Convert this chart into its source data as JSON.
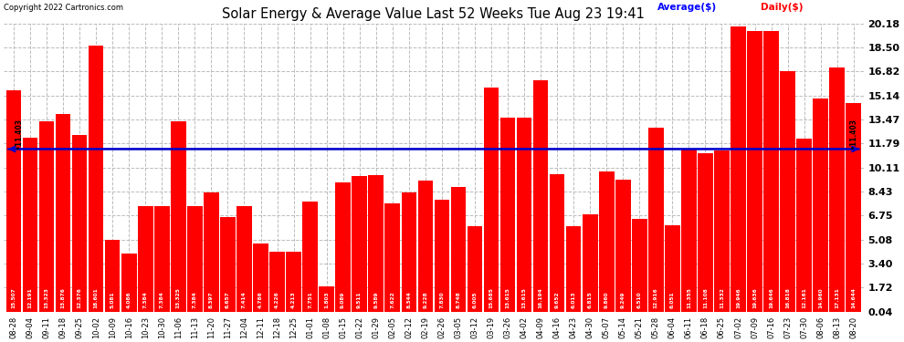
{
  "title": "Solar Energy & Average Value Last 52 Weeks Tue Aug 23 19:41",
  "copyright": "Copyright 2022 Cartronics.com",
  "average_label": "Average($)",
  "daily_label": "Daily($)",
  "average_value": 11.403,
  "ylim": [
    0.04,
    20.18
  ],
  "yticks": [
    0.04,
    1.72,
    3.4,
    5.08,
    6.75,
    8.43,
    10.11,
    11.79,
    13.47,
    15.14,
    16.82,
    18.5,
    20.18
  ],
  "bar_color": "#ff0000",
  "average_line_color": "#0000cc",
  "background_color": "#ffffff",
  "grid_color": "#bbbbbb",
  "categories": [
    "08-28",
    "09-04",
    "09-11",
    "09-18",
    "09-25",
    "10-02",
    "10-09",
    "10-16",
    "10-23",
    "10-30",
    "11-06",
    "11-13",
    "11-20",
    "11-27",
    "12-04",
    "12-11",
    "12-18",
    "12-25",
    "01-01",
    "01-08",
    "01-15",
    "01-22",
    "01-29",
    "02-05",
    "02-12",
    "02-19",
    "02-26",
    "03-05",
    "03-12",
    "03-19",
    "03-26",
    "04-02",
    "04-09",
    "04-16",
    "04-23",
    "04-30",
    "05-07",
    "05-14",
    "05-21",
    "05-28",
    "06-04",
    "06-11",
    "06-18",
    "06-25",
    "07-02",
    "07-09",
    "07-16",
    "07-23",
    "07-30",
    "08-06",
    "08-13",
    "08-20"
  ],
  "values": [
    15.507,
    12.191,
    13.323,
    13.876,
    12.376,
    18.601,
    5.081,
    4.086,
    7.384,
    7.384,
    13.325,
    7.384,
    8.397,
    6.657,
    7.414,
    4.786,
    4.226,
    4.213,
    7.751,
    1.803,
    9.089,
    9.511,
    9.589,
    7.622,
    8.344,
    9.228,
    7.83,
    8.748,
    6.005,
    15.685,
    13.615,
    13.615,
    16.194,
    9.652,
    6.013,
    6.815,
    9.86,
    9.249,
    6.51,
    12.916,
    6.051,
    11.355,
    11.108,
    11.332,
    19.946,
    19.636,
    19.646,
    16.818,
    12.161,
    14.96,
    17.131,
    14.644
  ],
  "value_labels": [
    "15.507",
    "12.191",
    "13.323",
    "13.876",
    "12.376",
    "18.601",
    "5.081",
    "4.086",
    "7.384",
    "7.384",
    "13.325",
    "7.384",
    "8.397",
    "6.657",
    "7.414",
    "4.786",
    "4.226",
    "4.213",
    "7.751",
    "1.803",
    "9.089",
    "9.511",
    "9.589",
    "7.622",
    "8.344",
    "9.228",
    "7.830",
    "8.748",
    "6.005",
    "15.685",
    "13.615",
    "13.615",
    "16.194",
    "9.652",
    "6.013",
    "6.815",
    "9.860",
    "9.249",
    "6.510",
    "12.916",
    "6.051",
    "11.355",
    "11.108",
    "11.332",
    "19.946",
    "19.636",
    "19.646",
    "16.818",
    "12.161",
    "14.960",
    "17.131",
    "14.644"
  ]
}
